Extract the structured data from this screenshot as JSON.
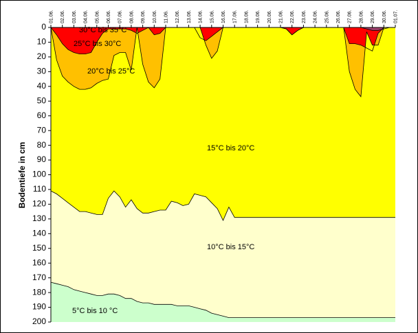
{
  "chart_data": {
    "type": "area",
    "ylabel": "Bodentiefe in cm",
    "ylim": [
      0,
      200
    ],
    "y_inverted": true,
    "y_ticks": [
      0,
      10,
      20,
      30,
      40,
      50,
      60,
      70,
      80,
      90,
      100,
      110,
      120,
      130,
      140,
      150,
      160,
      170,
      180,
      190,
      200
    ],
    "x_tick_labels": [
      "01.06.",
      "02.06.",
      "03.06.",
      "04.06.",
      "05.06.",
      "06.06.",
      "07.06.",
      "08.06.",
      "09.06.",
      "10.06.",
      "11.06.",
      "12.06.",
      "13.06.",
      "14.06.",
      "15.06.",
      "16.06.",
      "17.06.",
      "18.06.",
      "19.06.",
      "20.06.",
      "21.06.",
      "22.06.",
      "23.06.",
      "24.06.",
      "25.06.",
      "26.06.",
      "27.06.",
      "28.06.",
      "29.06.",
      "30.06.",
      "01.07."
    ],
    "x": [
      1,
      1.5,
      2,
      2.5,
      3,
      3.5,
      4,
      4.5,
      5,
      5.5,
      6,
      6.5,
      7,
      7.5,
      8,
      8.5,
      9,
      9.5,
      10,
      10.5,
      11,
      11.5,
      12,
      12.5,
      13,
      13.5,
      14,
      14.5,
      15,
      15.5,
      16,
      16.5,
      17,
      17.5,
      18,
      18.5,
      19,
      19.5,
      20,
      20.5,
      21,
      21.5,
      22,
      22.5,
      23,
      23.5,
      24,
      24.5,
      25,
      25.5,
      26,
      26.5,
      27,
      27.5,
      28,
      28.5,
      29,
      29.5,
      30,
      30.5,
      31
    ],
    "colors": {
      "30-35": "#a0406e",
      "25-30": "#ff0000",
      "20-25": "#ffc000",
      "15-20": "#ffff00",
      "10-15": "#ffffcc",
      "5-10": "#ccffcc"
    },
    "band_labels": {
      "b30_35": "30°C bis 35°C",
      "b25_30": "25°C bis 30°C",
      "b20_25": "20°C bis 25°C",
      "b15_20": "15°C bis 20°C",
      "b10_15": "10°C bis 15°C",
      "b5_10": "5°C bis 10 °C"
    },
    "series": [
      {
        "name": "30°C bis 35°C",
        "lower": [
          0,
          0,
          0,
          0,
          0,
          0,
          0,
          0,
          0,
          0,
          0,
          0,
          0,
          0,
          0,
          0,
          0,
          0,
          0,
          0,
          0,
          0,
          0,
          0,
          0,
          0,
          0,
          0,
          0,
          0,
          0,
          0,
          0,
          0,
          0,
          0,
          0,
          0,
          0,
          0,
          0,
          0,
          0,
          0,
          0,
          0,
          0,
          0,
          0,
          0,
          0,
          0,
          0,
          0,
          0,
          1,
          2,
          2,
          1,
          0,
          0
        ]
      },
      {
        "name": "25°C bis 30°C",
        "lower": [
          0,
          5,
          11,
          15,
          17,
          18,
          18,
          17,
          10,
          4,
          1,
          1,
          1,
          1,
          2,
          4,
          2,
          0,
          5,
          4,
          0,
          0,
          0,
          0,
          0,
          0,
          7,
          9,
          6,
          3,
          0,
          0,
          0,
          0,
          0,
          0,
          0,
          0,
          0,
          0,
          0,
          1,
          5,
          2,
          0,
          0,
          0,
          0,
          0,
          0,
          0,
          0,
          11,
          11,
          12,
          14,
          16,
          4,
          0,
          0,
          0
        ]
      },
      {
        "name": "20°C bis 25°C",
        "lower": [
          0,
          22,
          33,
          37,
          40,
          42,
          42,
          41,
          38,
          36,
          35,
          19,
          17,
          17,
          29,
          0,
          25,
          37,
          41,
          35,
          0,
          0,
          0,
          0,
          0,
          0,
          0,
          12,
          21,
          16,
          0,
          0,
          0,
          0,
          0,
          0,
          0,
          0,
          0,
          0,
          0,
          1,
          5,
          2,
          0,
          0,
          0,
          0,
          0,
          0,
          0,
          0,
          30,
          42,
          47,
          3,
          12,
          12,
          0,
          0,
          0
        ]
      },
      {
        "name": "15°C bis 20°C",
        "lower": [
          111,
          113,
          116,
          119,
          122,
          125,
          125,
          126,
          127,
          127,
          116,
          111,
          115,
          122,
          117,
          123,
          126,
          126,
          125,
          124,
          124,
          118,
          119,
          121,
          120,
          113,
          114,
          115,
          119,
          123,
          131,
          122,
          129,
          129,
          129,
          129,
          129,
          129,
          129,
          129,
          129,
          129,
          129,
          129,
          129,
          129,
          129,
          129,
          129,
          129,
          129,
          129,
          129,
          129,
          129,
          129,
          129,
          129,
          129,
          129,
          129
        ]
      },
      {
        "name": "10°C bis 15°C",
        "lower": [
          173,
          174,
          175,
          176,
          178,
          179,
          180,
          181,
          182,
          182,
          181,
          181,
          182,
          184,
          184,
          186,
          187,
          187,
          188,
          188,
          188,
          188,
          189,
          189,
          189,
          190,
          191,
          192,
          194,
          195,
          196,
          197,
          197,
          197,
          197,
          197,
          197,
          197,
          197,
          197,
          197,
          197,
          197,
          197,
          197,
          197,
          197,
          197,
          197,
          197,
          197,
          197,
          197,
          197,
          197,
          197,
          197,
          197,
          197,
          197,
          197
        ]
      },
      {
        "name": "5°C bis 10 °C",
        "lower": [
          200,
          200,
          200,
          200,
          200,
          200,
          200,
          200,
          200,
          200,
          200,
          200,
          200,
          200,
          200,
          200,
          200,
          200,
          200,
          200,
          200,
          200,
          200,
          200,
          200,
          200,
          200,
          200,
          200,
          200,
          200,
          200,
          200,
          200,
          200,
          200,
          200,
          200,
          200,
          200,
          200,
          200,
          200,
          200,
          200,
          200,
          200,
          200,
          200,
          200,
          200,
          200,
          200,
          200,
          200,
          200,
          200,
          200,
          200,
          200,
          200
        ]
      }
    ]
  }
}
